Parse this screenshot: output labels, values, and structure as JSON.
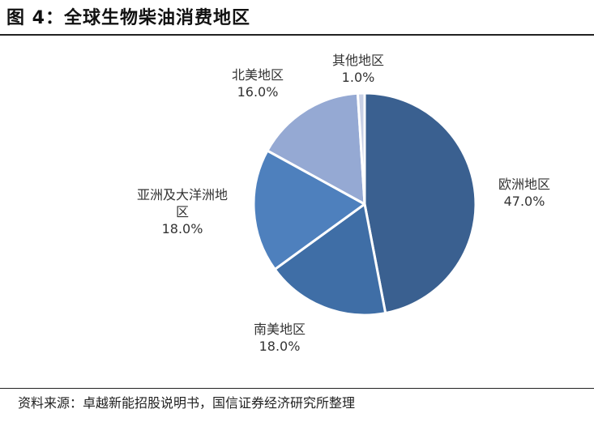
{
  "figure": {
    "title": "图 4：全球生物柴油消费地区",
    "source": "资料来源：卓越新能招股说明书，国信证券经济研究所整理"
  },
  "chart_data": {
    "type": "pie",
    "title": "",
    "start_angle_deg": 0,
    "direction": "clockwise",
    "slices": [
      {
        "label": "欧洲地区",
        "label_lines": [
          "欧洲地区"
        ],
        "value": 47.0,
        "value_text": "47.0%",
        "color": "#3a6090"
      },
      {
        "label": "南美地区",
        "label_lines": [
          "南美地区"
        ],
        "value": 18.0,
        "value_text": "18.0%",
        "color": "#3f6ea6"
      },
      {
        "label": "亚洲及大洋洲地区",
        "label_lines": [
          "亚洲及大洋洲地",
          "区"
        ],
        "value": 18.0,
        "value_text": "18.0%",
        "color": "#4e80bd"
      },
      {
        "label": "北美地区",
        "label_lines": [
          "北美地区"
        ],
        "value": 16.0,
        "value_text": "16.0%",
        "color": "#95a9d3"
      },
      {
        "label": "其他地区",
        "label_lines": [
          "其他地区"
        ],
        "value": 1.0,
        "value_text": "1.0%",
        "color": "#c8d0e6"
      }
    ]
  }
}
